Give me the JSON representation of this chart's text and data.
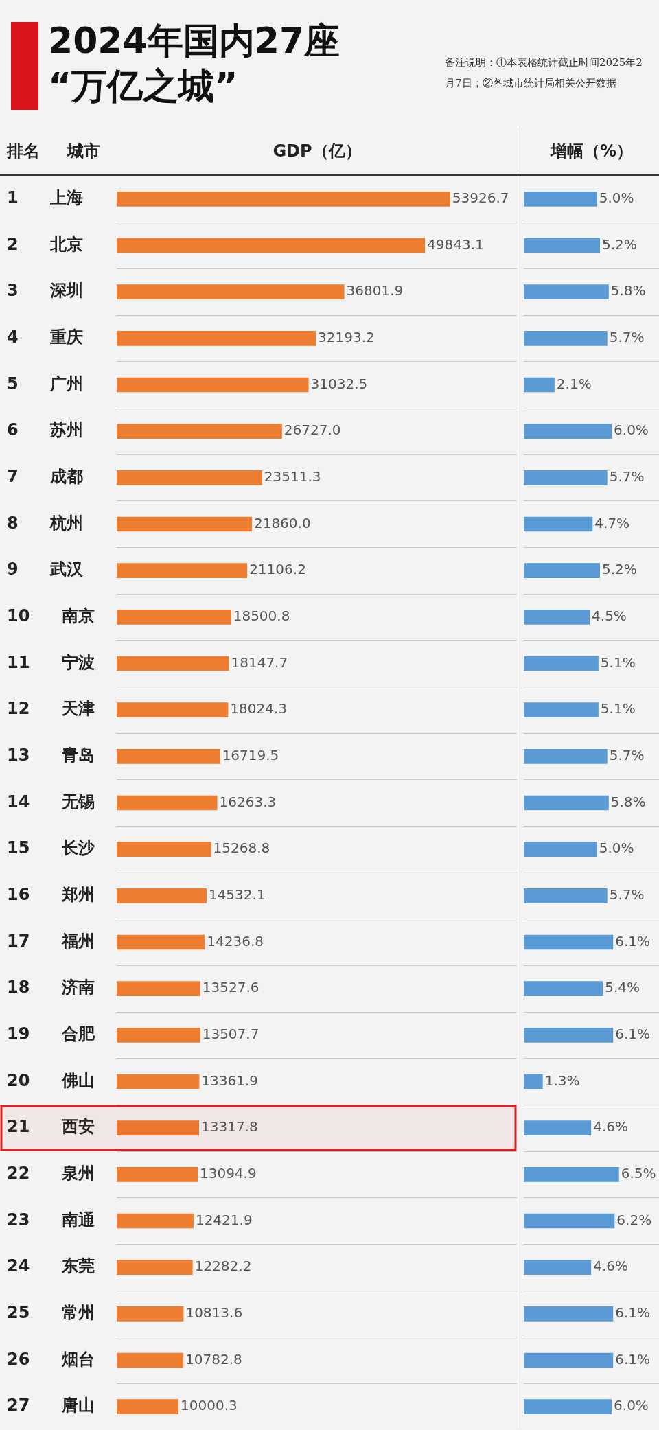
{
  "chart_data": [
    {
      "type": "bar",
      "orientation": "horizontal",
      "title": "2024年国内27座 “万亿之城”",
      "ylabel": "排名 城市",
      "xlabel": "GDP（亿）",
      "tick_labels": "y",
      "grid": "y",
      "color": "#ed7d31",
      "annotations": [
        "备注说明：①本表格统计截止时间2025年2月7日；②各城市统计局相关公开数据"
      ],
      "categories": [
        "1 上海",
        "2 北京",
        "3 深圳",
        "4 重庆",
        "5 广州",
        "6 苏州",
        "7 成都",
        "8 杭州",
        "9 武汉",
        "10 南京",
        "11 宁波",
        "12 天津",
        "13 青岛",
        "14 无锡",
        "15 长沙",
        "16 郑州",
        "17 福州",
        "18 济南",
        "19 合肥",
        "20 佛山",
        "21 西安",
        "22 泉州",
        "23 南通",
        "24 东莞",
        "25 常州",
        "26 烟台",
        "27 唐山"
      ],
      "values": [
        53926.7,
        49843.1,
        36801.9,
        32193.2,
        31032.5,
        26727.0,
        23511.3,
        21860.0,
        21106.2,
        18500.8,
        18147.7,
        18024.3,
        16719.5,
        16263.3,
        15268.8,
        14532.1,
        14236.8,
        13527.6,
        13507.7,
        13361.9,
        13317.8,
        13094.9,
        12421.9,
        12282.2,
        10813.6,
        10782.8,
        10000.3
      ],
      "value_labels": [
        "53926.7",
        "49843.1",
        "36801.9",
        "32193.2",
        "31032.5",
        "26727.0",
        "23511.3",
        "21860.0",
        "21106.2",
        "18500.8",
        "18147.7",
        "18024.3",
        "16719.5",
        "16263.3",
        "15268.8",
        "14532.1",
        "14236.8",
        "13527.6",
        "13507.7",
        "13361.9",
        "13317.8",
        "13094.9",
        "12421.9",
        "12282.2",
        "10813.6",
        "10782.8",
        "10000.3"
      ],
      "bands": [
        {
          "axis": "y",
          "from": "21 西安",
          "to": "21 西安",
          "color": "#e02020"
        }
      ]
    },
    {
      "type": "bar",
      "orientation": "horizontal",
      "xlabel": "增幅（%）",
      "tick_labels": false,
      "grid": "y",
      "color": "#5b9bd5",
      "categories": [
        null,
        null,
        null,
        null,
        null,
        null,
        null,
        null,
        null,
        null,
        null,
        null,
        null,
        null,
        null,
        null,
        null,
        null,
        null,
        null,
        null,
        null,
        null,
        null,
        null,
        null,
        null
      ],
      "values": [
        5.0,
        5.2,
        5.8,
        5.7,
        2.1,
        6.0,
        5.7,
        4.7,
        5.2,
        4.5,
        5.1,
        5.1,
        5.7,
        5.8,
        5.0,
        5.7,
        6.1,
        5.4,
        6.1,
        1.3,
        4.6,
        6.5,
        6.2,
        4.6,
        6.1,
        6.1,
        6.0
      ],
      "value_labels": [
        "5.0%",
        "5.2%",
        "5.8%",
        "5.7%",
        "2.1%",
        "6.0%",
        "5.7%",
        "4.7%",
        "5.2%",
        "4.5%",
        "5.1%",
        "5.1%",
        "5.7%",
        "5.8%",
        "5.0%",
        "5.7%",
        "6.1%",
        "5.4%",
        "6.1%",
        "1.3%",
        "4.6%",
        "6.5%",
        "6.2%",
        "4.6%",
        "6.1%",
        "6.1%",
        "6.0%"
      ]
    }
  ]
}
